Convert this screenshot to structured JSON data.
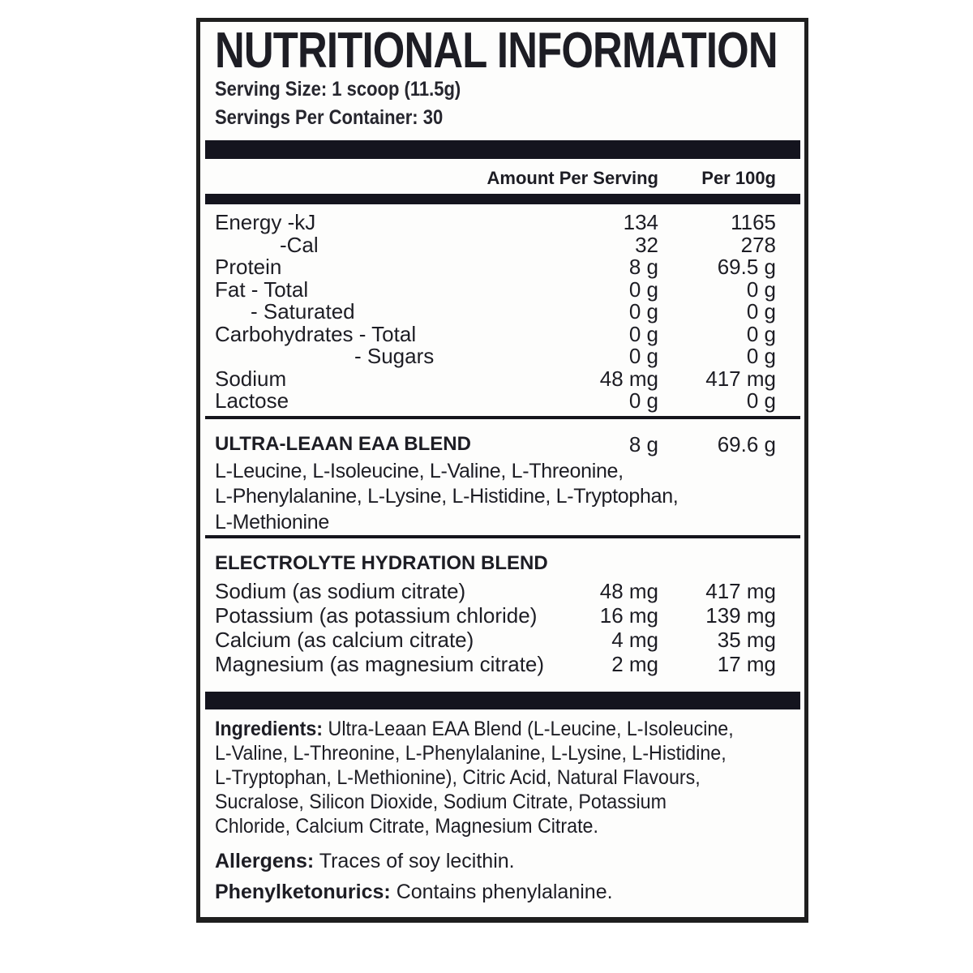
{
  "label": {
    "title": "NUTRITIONAL INFORMATION",
    "serving_size": "Serving Size: 1 scoop (11.5g)",
    "servings_per_container": "Servings Per Container: 30",
    "columns": {
      "amount": "Amount Per Serving",
      "per100g": "Per 100g"
    },
    "nutrients": {
      "rows": [
        {
          "label": "Energy -kJ",
          "amount": "134",
          "per100g": "1165"
        },
        {
          "label": "-Cal",
          "amount": "32",
          "per100g": "278"
        },
        {
          "label": "Protein",
          "amount": "8 g",
          "per100g": "69.5 g"
        },
        {
          "label": "Fat - Total",
          "amount": "0 g",
          "per100g": "0 g"
        },
        {
          "label": "- Saturated",
          "amount": "0 g",
          "per100g": "0 g"
        },
        {
          "label": "Carbohydrates - Total",
          "amount": "0 g",
          "per100g": "0 g"
        },
        {
          "label": "- Sugars",
          "amount": "0 g",
          "per100g": "0 g"
        },
        {
          "label": "Sodium",
          "amount": "48 mg",
          "per100g": "417 mg"
        },
        {
          "label": "Lactose",
          "amount": "0 g",
          "per100g": "0 g"
        }
      ]
    },
    "eaa_blend": {
      "name": "ULTRA-LEAAN EAA BLEND",
      "amount": "8 g",
      "per100g": "69.6 g",
      "lines": [
        "L-Leucine, L-Isoleucine, L-Valine, L-Threonine,",
        "L-Phenylalanine, L-Lysine, L-Histidine, L-Tryptophan,",
        "L-Methionine"
      ]
    },
    "electrolyte_blend": {
      "name": "ELECTROLYTE HYDRATION BLEND",
      "rows": [
        {
          "label": "Sodium (as sodium citrate)",
          "amount": "48 mg",
          "per100g": "417 mg"
        },
        {
          "label": "Potassium (as potassium chloride)",
          "amount": "16 mg",
          "per100g": "139 mg"
        },
        {
          "label": "Calcium (as calcium citrate)",
          "amount": "4 mg",
          "per100g": "35 mg"
        },
        {
          "label": "Magnesium (as magnesium citrate)",
          "amount": "2 mg",
          "per100g": "17 mg"
        }
      ]
    },
    "ingredients": {
      "label": "Ingredients:",
      "lines": [
        "Ultra-Leaan EAA Blend (L-Leucine, L-Isoleucine,",
        "L-Valine, L-Threonine, L-Phenylalanine, L-Lysine, L-Histidine,",
        "L-Tryptophan, L-Methionine), Citric Acid, Natural Flavours,",
        "Sucralose, Silicon Dioxide, Sodium Citrate, Potassium",
        "Chloride, Calcium Citrate, Magnesium Citrate."
      ]
    },
    "allergens": {
      "label": "Allergens:",
      "text": "Traces of soy lecithin."
    },
    "phenylketonurics": {
      "label": "Phenylketonurics:",
      "text": "Contains phenylalanine."
    },
    "colors": {
      "bar": "#14141e",
      "text": "#1d1d24",
      "border": "#1f1f1f",
      "background": "#fdfdfc"
    }
  }
}
